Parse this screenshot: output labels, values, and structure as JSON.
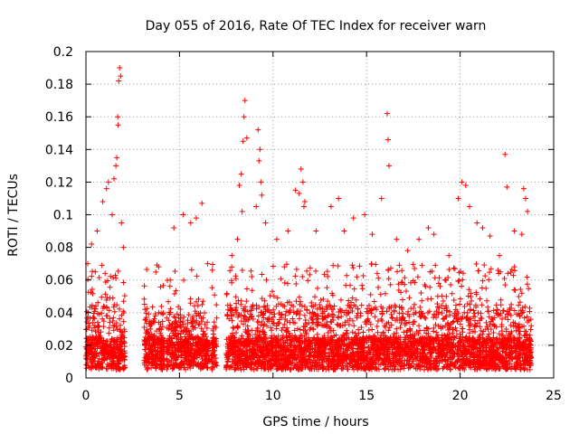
{
  "chart_data": {
    "type": "scatter",
    "title": "Day 055 of 2016, Rate Of TEC Index for receiver warn",
    "xlabel": "GPS time / hours",
    "ylabel": "ROTI / TECUs",
    "xlim": [
      0,
      25
    ],
    "ylim": [
      0,
      0.2
    ],
    "xticks": [
      "0",
      "5",
      "10",
      "15",
      "20",
      "25"
    ],
    "yticks": [
      "0",
      "0.02",
      "0.04",
      "0.06",
      "0.08",
      "0.1",
      "0.12",
      "0.14",
      "0.16",
      "0.18",
      "0.2"
    ],
    "grid": true,
    "marker": "+",
    "color": "#ff0000",
    "data_gaps_hours": [
      [
        2.1,
        3.1
      ],
      [
        4.2,
        4.3
      ],
      [
        6.6,
        6.7
      ],
      [
        7.0,
        7.5
      ]
    ],
    "series": [
      {
        "name": "",
        "points": [
          [
            1.8,
            0.19
          ],
          [
            1.85,
            0.185
          ],
          [
            1.75,
            0.182
          ],
          [
            1.7,
            0.16
          ],
          [
            1.72,
            0.155
          ],
          [
            1.65,
            0.135
          ],
          [
            1.6,
            0.13
          ],
          [
            1.5,
            0.122
          ],
          [
            1.2,
            0.12
          ],
          [
            1.1,
            0.116
          ],
          [
            0.9,
            0.108
          ],
          [
            1.4,
            0.1
          ],
          [
            0.6,
            0.09
          ],
          [
            0.3,
            0.082
          ],
          [
            0.1,
            0.07
          ],
          [
            0.5,
            0.065
          ],
          [
            1.9,
            0.095
          ],
          [
            2.0,
            0.08
          ],
          [
            3.6,
            0.035
          ],
          [
            3.9,
            0.04
          ],
          [
            4.7,
            0.092
          ],
          [
            5.2,
            0.1
          ],
          [
            5.6,
            0.095
          ],
          [
            5.9,
            0.098
          ],
          [
            6.2,
            0.107
          ],
          [
            6.5,
            0.07
          ],
          [
            7.8,
            0.075
          ],
          [
            8.1,
            0.085
          ],
          [
            8.5,
            0.17
          ],
          [
            8.45,
            0.16
          ],
          [
            8.6,
            0.147
          ],
          [
            8.4,
            0.145
          ],
          [
            8.3,
            0.125
          ],
          [
            8.2,
            0.118
          ],
          [
            8.35,
            0.102
          ],
          [
            9.2,
            0.152
          ],
          [
            9.3,
            0.14
          ],
          [
            9.25,
            0.133
          ],
          [
            9.35,
            0.12
          ],
          [
            9.4,
            0.112
          ],
          [
            9.1,
            0.105
          ],
          [
            9.6,
            0.095
          ],
          [
            10.2,
            0.085
          ],
          [
            10.8,
            0.09
          ],
          [
            11.2,
            0.115
          ],
          [
            11.5,
            0.128
          ],
          [
            11.6,
            0.12
          ],
          [
            11.4,
            0.113
          ],
          [
            11.7,
            0.108
          ],
          [
            11.65,
            0.105
          ],
          [
            12.3,
            0.09
          ],
          [
            13.1,
            0.105
          ],
          [
            13.5,
            0.11
          ],
          [
            13.8,
            0.09
          ],
          [
            14.3,
            0.098
          ],
          [
            14.9,
            0.1
          ],
          [
            15.3,
            0.088
          ],
          [
            15.8,
            0.11
          ],
          [
            16.1,
            0.162
          ],
          [
            16.15,
            0.146
          ],
          [
            16.2,
            0.13
          ],
          [
            16.6,
            0.085
          ],
          [
            17.2,
            0.078
          ],
          [
            17.8,
            0.085
          ],
          [
            18.3,
            0.092
          ],
          [
            18.6,
            0.088
          ],
          [
            19.4,
            0.075
          ],
          [
            19.9,
            0.11
          ],
          [
            20.1,
            0.12
          ],
          [
            20.3,
            0.118
          ],
          [
            20.5,
            0.105
          ],
          [
            20.9,
            0.095
          ],
          [
            21.2,
            0.092
          ],
          [
            21.6,
            0.087
          ],
          [
            22.1,
            0.075
          ],
          [
            22.4,
            0.137
          ],
          [
            22.5,
            0.117
          ],
          [
            22.9,
            0.09
          ],
          [
            23.4,
            0.116
          ],
          [
            23.5,
            0.11
          ],
          [
            23.6,
            0.102
          ],
          [
            23.3,
            0.088
          ]
        ]
      }
    ]
  }
}
